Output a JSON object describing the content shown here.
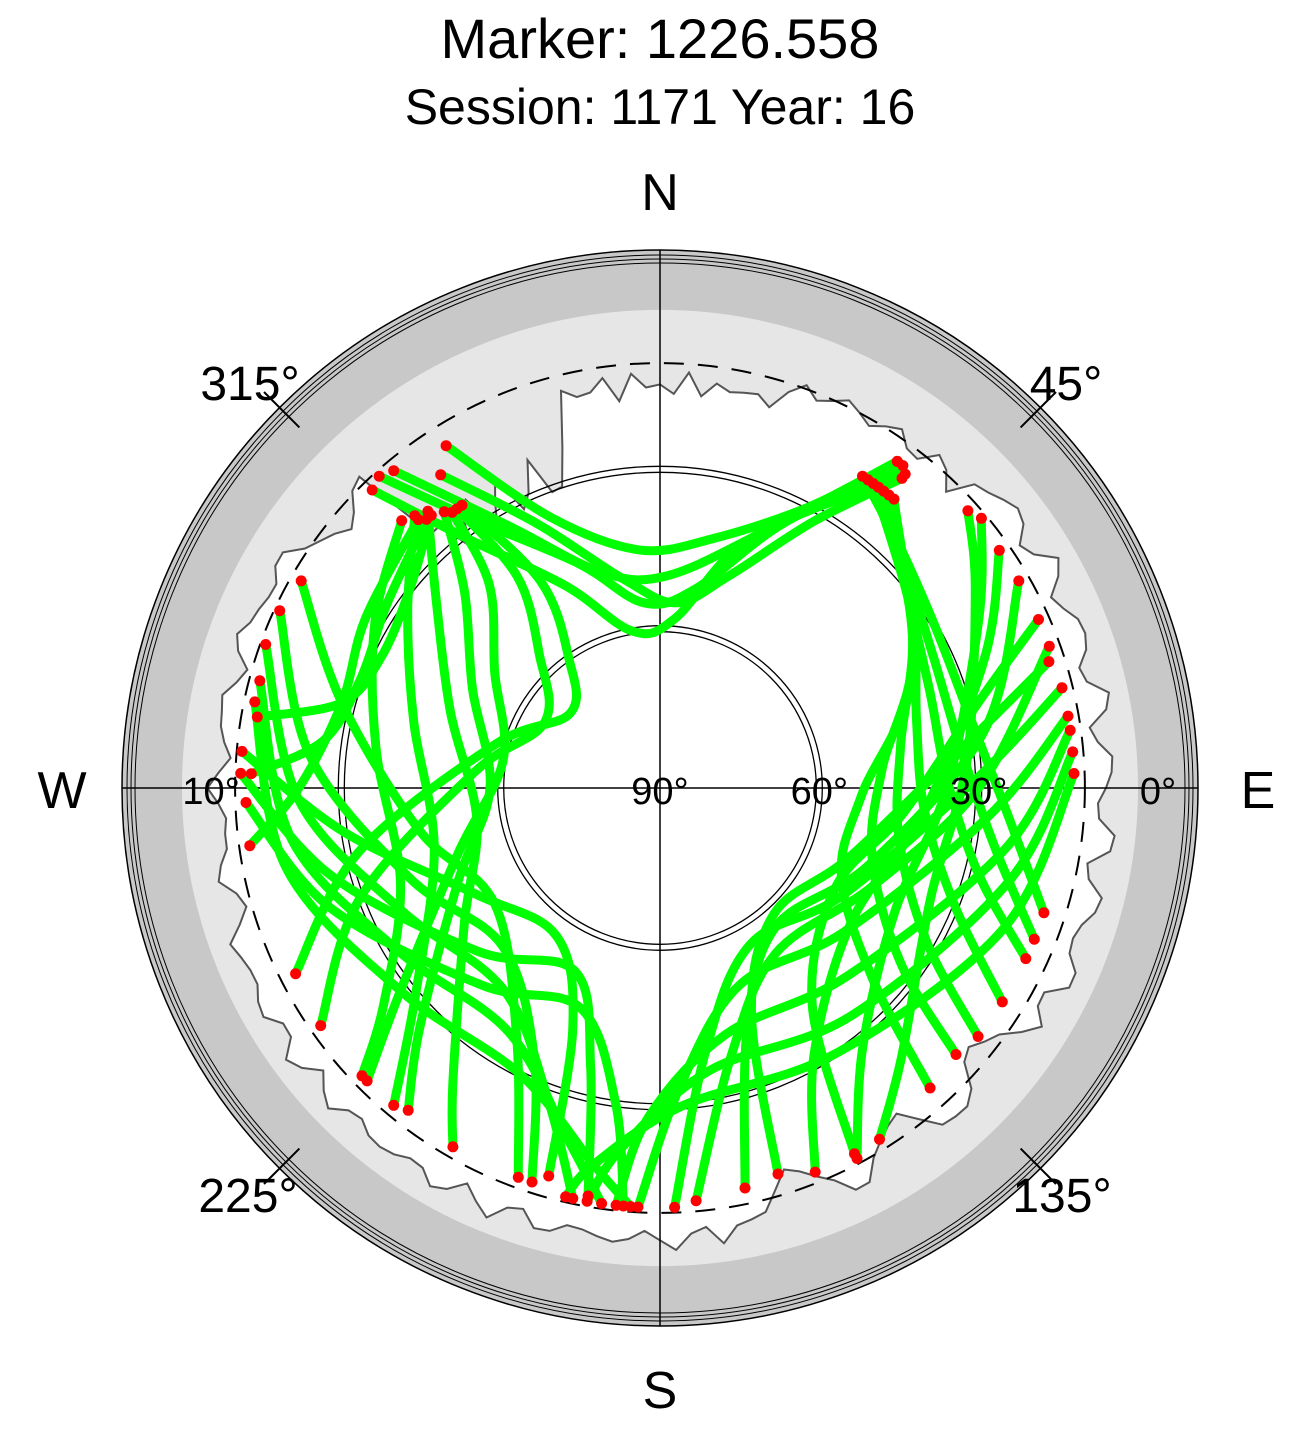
{
  "chart_data": {
    "type": "scatter",
    "projection": "polar-skyplot",
    "title": "Marker: 1226.558",
    "subtitle": "Session: 1171 Year: 16",
    "compass": {
      "north": "N",
      "east": "E",
      "south": "S",
      "west": "W"
    },
    "azimuth_labels": [
      "45°",
      "135°",
      "225°",
      "315°"
    ],
    "azimuth_values": [
      45,
      135,
      225,
      315
    ],
    "elevation_labels": [
      "90°",
      "60°",
      "30°",
      "0°",
      "10°"
    ],
    "elevation_values": [
      90,
      60,
      30,
      0,
      10
    ],
    "elevation_range": [
      0,
      90
    ],
    "cutoff_elevation": 10,
    "colors": {
      "track": "#00ff00",
      "track_end": "#ff0000",
      "mask_outer": "#c8c8c8",
      "mask_inner": "#e6e6e6",
      "grid": "#000000"
    },
    "tracks": [
      {
        "az": [
          38,
          20,
          5,
          350,
          335,
          322,
          316
        ],
        "el": [
          15,
          40,
          58,
          60,
          48,
          30,
          12
        ]
      },
      {
        "az": [
          37,
          25,
          10,
          355,
          340,
          325,
          318
        ],
        "el": [
          14,
          35,
          52,
          55,
          45,
          28,
          11
        ]
      },
      {
        "az": [
          36,
          22,
          2,
          345,
          330,
          320
        ],
        "el": [
          14,
          38,
          50,
          48,
          33,
          12
        ]
      },
      {
        "az": [
          38,
          30,
          18,
          5,
          350,
          335,
          325
        ],
        "el": [
          16,
          32,
          48,
          55,
          50,
          35,
          18
        ]
      },
      {
        "az": [
          36,
          28,
          12,
          355,
          338,
          328
        ],
        "el": [
          14,
          30,
          42,
          45,
          35,
          14
        ]
      },
      {
        "az": [
          70,
          90,
          115,
          145,
          165,
          175
        ],
        "el": [
          12,
          30,
          46,
          52,
          38,
          12
        ]
      },
      {
        "az": [
          60,
          80,
          110,
          140,
          160,
          168
        ],
        "el": [
          12,
          28,
          48,
          56,
          42,
          13
        ]
      },
      {
        "az": [
          55,
          68,
          95,
          125,
          150,
          158
        ],
        "el": [
          12,
          24,
          40,
          46,
          32,
          12
        ]
      },
      {
        "az": [
          50,
          62,
          90,
          118,
          142,
          152
        ],
        "el": [
          11,
          22,
          36,
          40,
          28,
          11
        ]
      },
      {
        "az": [
          48,
          58,
          85,
          112,
          138,
          148
        ],
        "el": [
          12,
          20,
          32,
          35,
          22,
          12
        ]
      },
      {
        "az": [
          66,
          75,
          96,
          120,
          145,
          152
        ],
        "el": [
          12,
          28,
          44,
          52,
          40,
          12
        ]
      },
      {
        "az": [
          72,
          82,
          110,
          138,
          158,
          163
        ],
        "el": [
          13,
          32,
          52,
          58,
          44,
          14
        ]
      },
      {
        "az": [
          76,
          88,
          120,
          150,
          170,
          178
        ],
        "el": [
          12,
          30,
          50,
          56,
          40,
          11
        ]
      },
      {
        "az": [
          80,
          95,
          128,
          158,
          176,
          183
        ],
        "el": [
          12,
          28,
          46,
          50,
          34,
          11
        ]
      },
      {
        "az": [
          82,
          100,
          135,
          165,
          182,
          186
        ],
        "el": [
          12,
          24,
          40,
          42,
          28,
          11
        ]
      },
      {
        "az": [
          85,
          105,
          140,
          170,
          186,
          190
        ],
        "el": [
          12,
          22,
          34,
          36,
          22,
          11
        ]
      },
      {
        "az": [
          88,
          112,
          146,
          176,
          190,
          193
        ],
        "el": [
          12,
          20,
          30,
          30,
          18,
          11
        ]
      },
      {
        "az": [
          300,
          285,
          260,
          235,
          210,
          200
        ],
        "el": [
          12,
          28,
          44,
          52,
          36,
          12
        ]
      },
      {
        "az": [
          295,
          275,
          250,
          225,
          205,
          198
        ],
        "el": [
          11,
          24,
          40,
          48,
          34,
          12
        ]
      },
      {
        "az": [
          290,
          268,
          245,
          218,
          200,
          192
        ],
        "el": [
          11,
          22,
          36,
          42,
          28,
          11
        ]
      },
      {
        "az": [
          285,
          262,
          238,
          212,
          195,
          188
        ],
        "el": [
          12,
          20,
          32,
          36,
          22,
          11
        ]
      },
      {
        "az": [
          282,
          258,
          232,
          206,
          190,
          184
        ],
        "el": [
          12,
          18,
          28,
          30,
          18,
          11
        ]
      },
      {
        "az": [
          275,
          262,
          240,
          215,
          200,
          196
        ],
        "el": [
          11,
          30,
          50,
          56,
          42,
          14
        ]
      },
      {
        "az": [
          272,
          255,
          228,
          205,
          194,
          190
        ],
        "el": [
          11,
          26,
          44,
          52,
          36,
          12
        ]
      },
      {
        "az": [
          268,
          250,
          222,
          200,
          188,
          185
        ],
        "el": [
          12,
          24,
          40,
          46,
          30,
          11
        ]
      },
      {
        "az": [
          320,
          310,
          290,
          260,
          235,
          215,
          210
        ],
        "el": [
          22,
          35,
          48,
          55,
          45,
          22,
          12
        ]
      },
      {
        "az": [
          322,
          315,
          298,
          270,
          245,
          225,
          218
        ],
        "el": [
          24,
          38,
          50,
          58,
          48,
          26,
          13
        ]
      },
      {
        "az": [
          323,
          320,
          305,
          280,
          252,
          232,
          225
        ],
        "el": [
          25,
          40,
          52,
          60,
          50,
          28,
          12
        ]
      },
      {
        "az": [
          318,
          305,
          285,
          255,
          230,
          220
        ],
        "el": [
          21,
          32,
          42,
          46,
          30,
          12
        ]
      },
      {
        "az": [
          316,
          300,
          278,
          250,
          232,
          226
        ],
        "el": [
          20,
          28,
          36,
          38,
          24,
          12
        ]
      },
      {
        "az": [
          324,
          326,
          318,
          300,
          275,
          250,
          235
        ],
        "el": [
          25,
          42,
          56,
          65,
          55,
          30,
          12
        ]
      },
      {
        "az": [
          325,
          330,
          325,
          310,
          285,
          258,
          243
        ],
        "el": [
          25,
          45,
          60,
          68,
          58,
          32,
          13
        ]
      },
      {
        "az": [
          33,
          45,
          60,
          78,
          95,
          108
        ],
        "el": [
          20,
          26,
          30,
          30,
          24,
          14
        ]
      },
      {
        "az": [
          34,
          48,
          65,
          82,
          100,
          112
        ],
        "el": [
          20,
          28,
          33,
          33,
          26,
          14
        ]
      },
      {
        "az": [
          35,
          50,
          70,
          88,
          105,
          115
        ],
        "el": [
          20,
          30,
          36,
          36,
          28,
          14
        ]
      },
      {
        "az": [
          36,
          55,
          75,
          95,
          112,
          122
        ],
        "el": [
          20,
          32,
          40,
          40,
          30,
          14
        ]
      },
      {
        "az": [
          37,
          58,
          80,
          102,
          120,
          128
        ],
        "el": [
          20,
          34,
          44,
          44,
          32,
          14
        ]
      },
      {
        "az": [
          38,
          62,
          85,
          108,
          126,
          132
        ],
        "el": [
          20,
          36,
          48,
          48,
          34,
          15
        ]
      },
      {
        "az": [
          39,
          66,
          92,
          116,
          132,
          138
        ],
        "el": [
          20,
          38,
          52,
          52,
          36,
          14
        ]
      },
      {
        "az": [
          318,
          300,
          285,
          270,
          262
        ],
        "el": [
          22,
          26,
          28,
          22,
          12
        ]
      },
      {
        "az": [
          319,
          304,
          290,
          278,
          272
        ],
        "el": [
          23,
          28,
          30,
          26,
          13
        ]
      },
      {
        "az": [
          320,
          308,
          295,
          285,
          280
        ],
        "el": [
          23,
          30,
          32,
          28,
          13
        ]
      }
    ]
  }
}
